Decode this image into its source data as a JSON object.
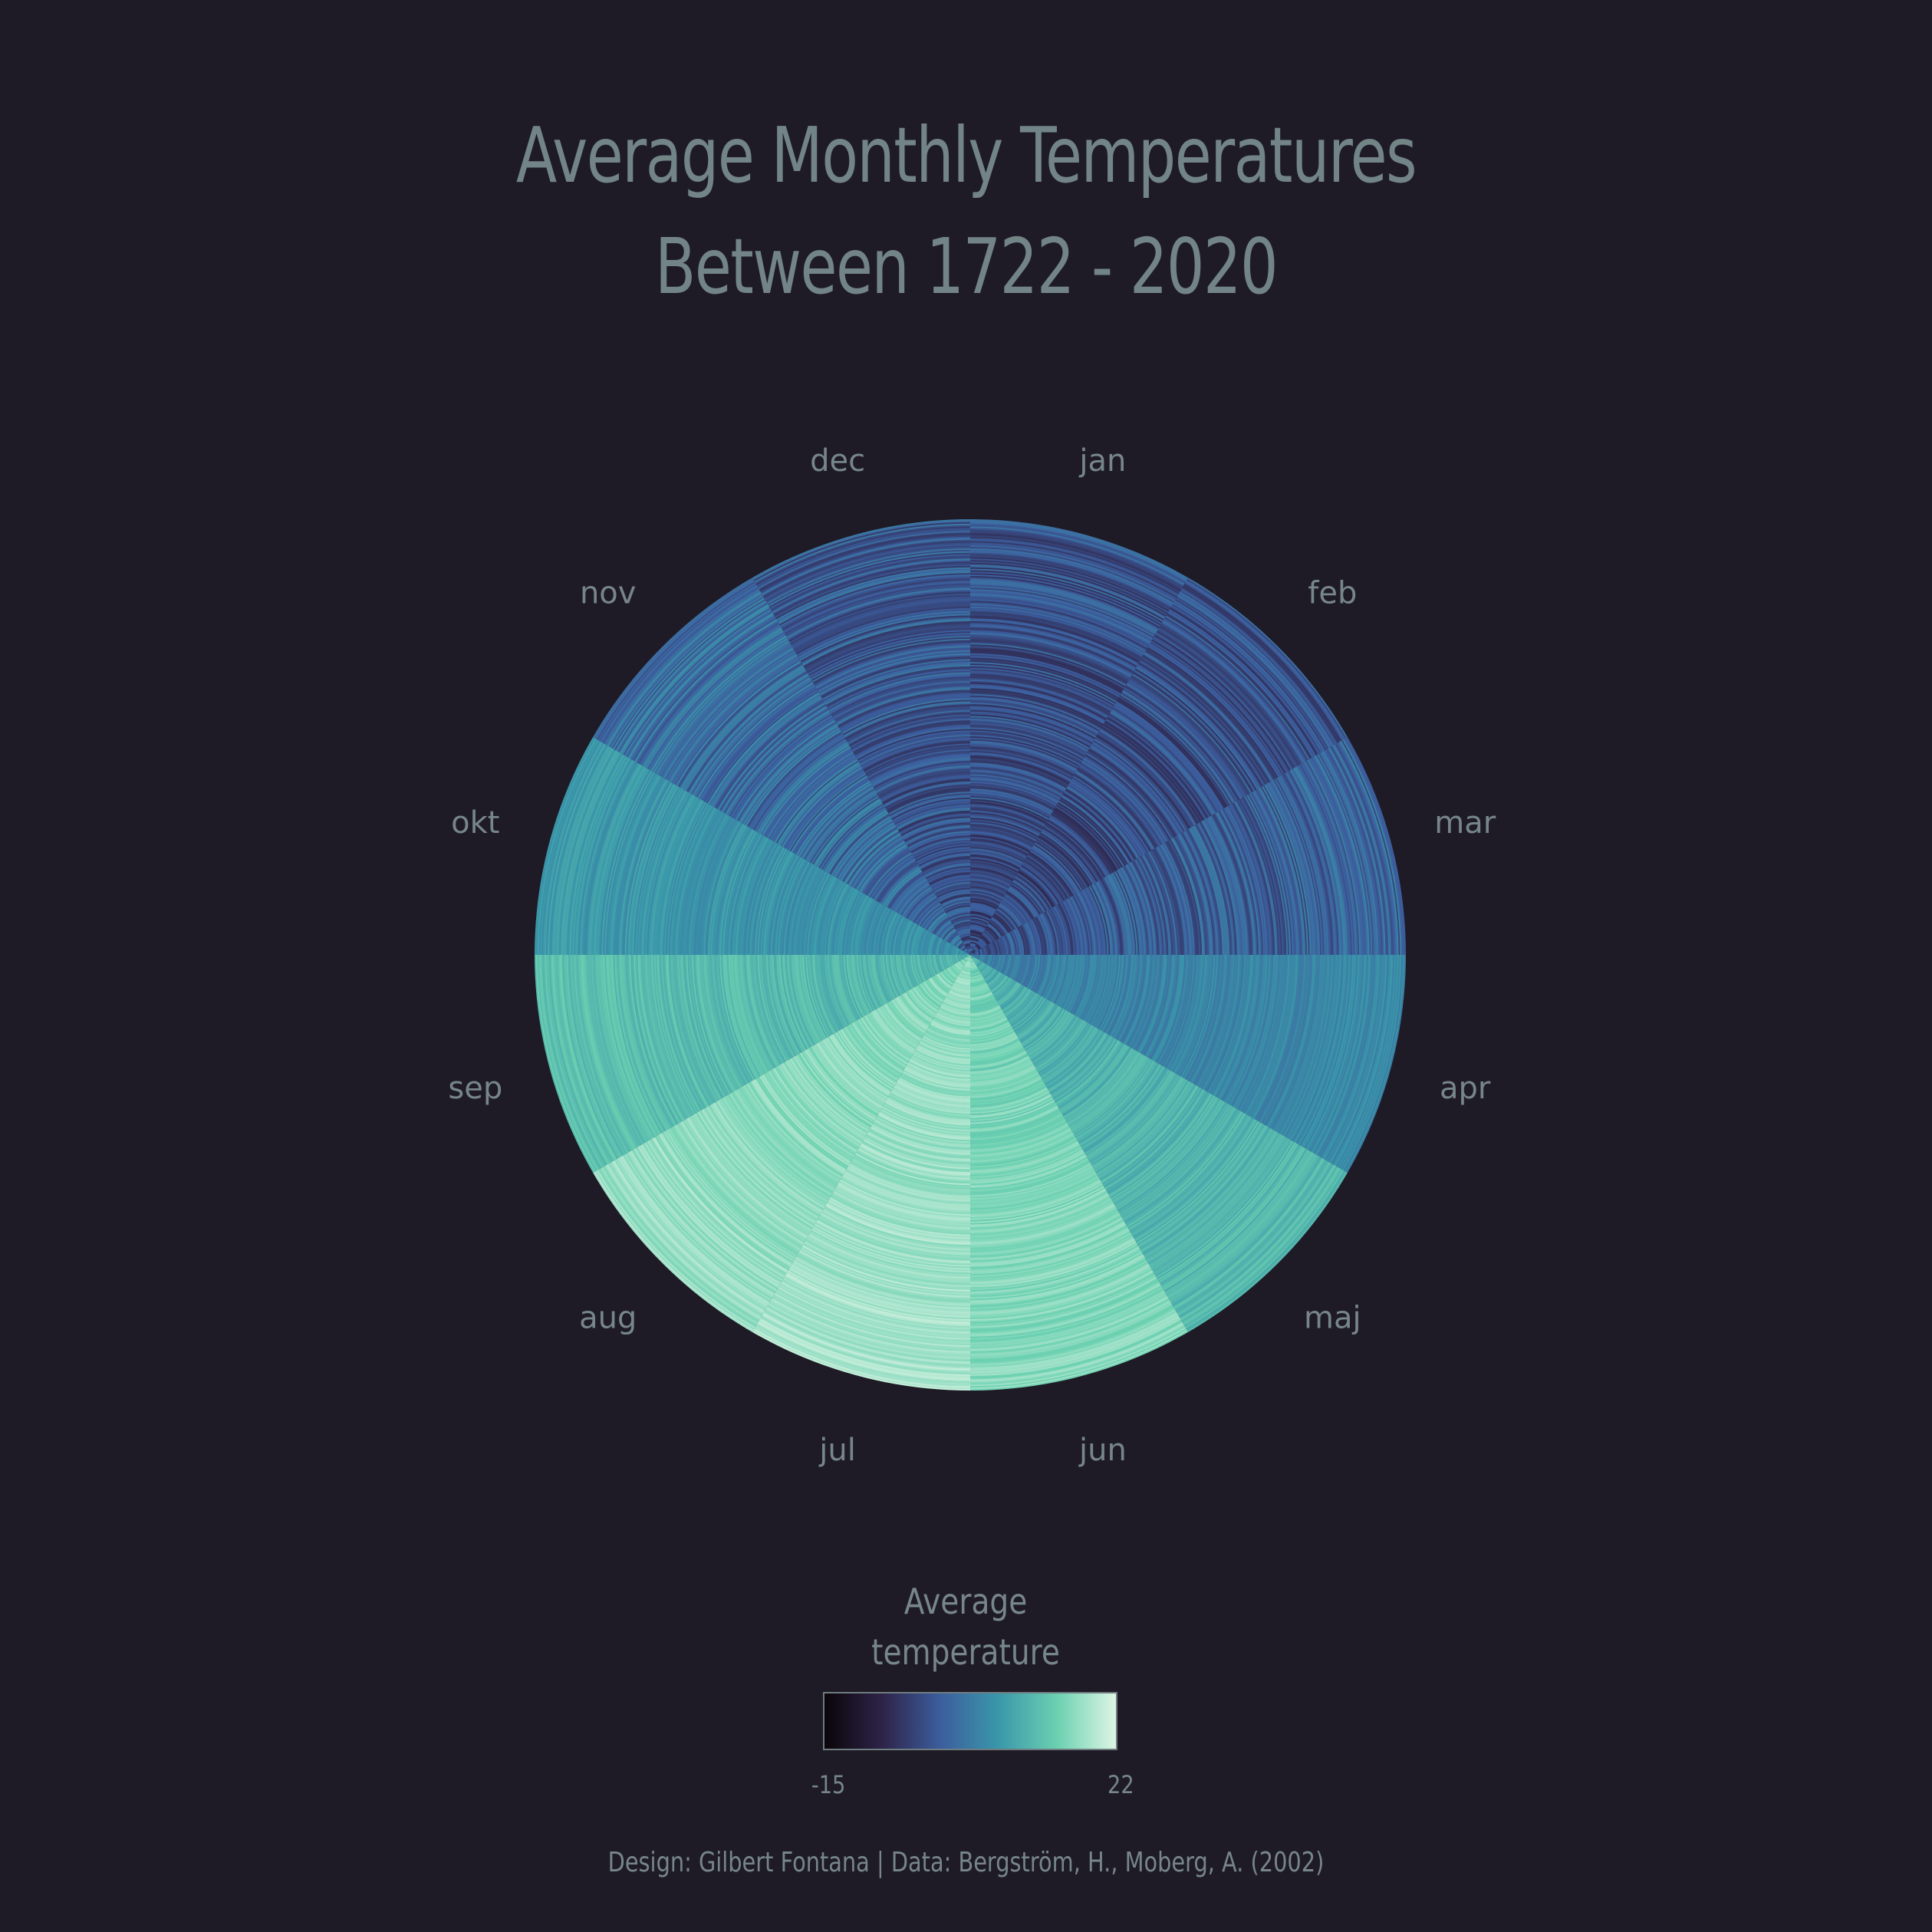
{
  "chart_data": {
    "type": "radial-heatmap",
    "title_line1": "Average Monthly Temperatures",
    "title_line2": "Between 1722 - 2020",
    "months": [
      "jan",
      "feb",
      "mar",
      "apr",
      "maj",
      "jun",
      "jul",
      "aug",
      "sep",
      "okt",
      "nov",
      "dec"
    ],
    "year_range": [
      1722,
      2020
    ],
    "monthly_mean_temperature": [
      -3,
      -3,
      -1,
      4,
      10,
      15,
      17,
      16,
      11,
      6,
      1,
      -2
    ],
    "legend": {
      "title_line1": "Average",
      "title_line2": "temperature",
      "min": -15,
      "max": 22,
      "min_label": "-15",
      "max_label": "22"
    },
    "colorscale": [
      "#0b0509",
      "#2e2449",
      "#3c5e9e",
      "#3a98aa",
      "#6cd1b1",
      "#def5e5"
    ],
    "caption": "Design: Gilbert Fontana | Data: Bergström, H., Moberg, A. (2002)"
  },
  "colors": {
    "background": "#1e1b26",
    "text": "#77868a"
  }
}
